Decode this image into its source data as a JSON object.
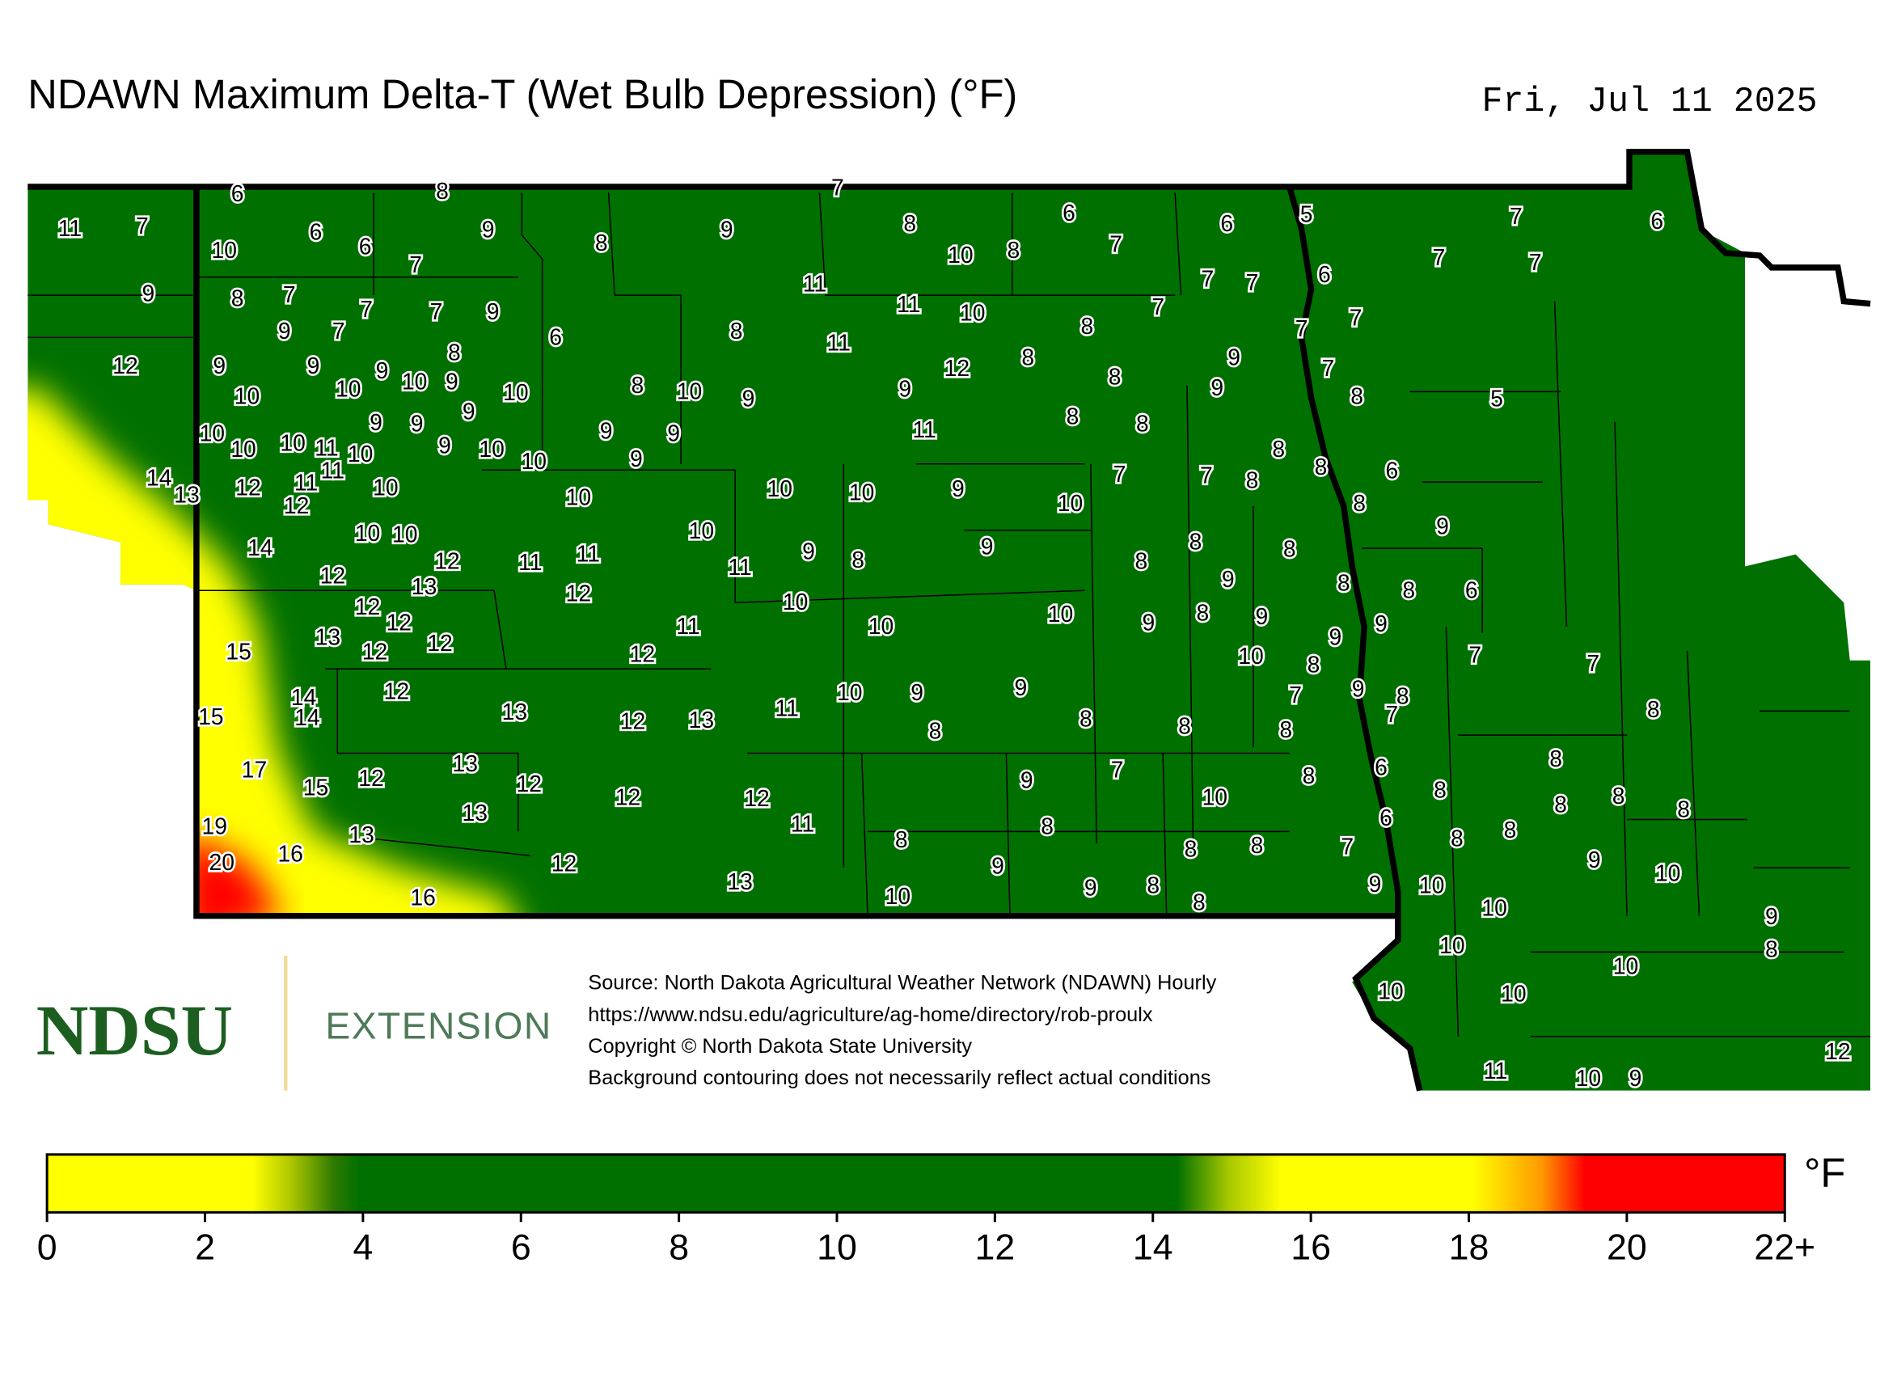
{
  "header": {
    "title": "NDAWN Maximum Delta-T (Wet Bulb Depression) (°F)",
    "date": "Fri, Jul 11 2025"
  },
  "stations": [
    6,
    8,
    7,
    11,
    7,
    9,
    9,
    8,
    6,
    6,
    5,
    7,
    6,
    10,
    6,
    6,
    7,
    8,
    10,
    8,
    7,
    7,
    7,
    9,
    8,
    7,
    11,
    7,
    7,
    6,
    7,
    7,
    9,
    11,
    10,
    7,
    7,
    9,
    7,
    6,
    8,
    8,
    7,
    11,
    12,
    8,
    8,
    9,
    9,
    9,
    9,
    12,
    7,
    10,
    10,
    10,
    9,
    10,
    8,
    10,
    9,
    9,
    8,
    9,
    8,
    5,
    9,
    9,
    9,
    8,
    8,
    10,
    9,
    9,
    11,
    10,
    10,
    11,
    10,
    9,
    10,
    10,
    9,
    8,
    11,
    8,
    6,
    14,
    13,
    12,
    11,
    10,
    10,
    10,
    9,
    7,
    7,
    8,
    12,
    10,
    10,
    8,
    10,
    10,
    10,
    9,
    8,
    9,
    14,
    12,
    11,
    11,
    11,
    9,
    8,
    8,
    8,
    12,
    13,
    12,
    9,
    8,
    8,
    6,
    12,
    12,
    10,
    11,
    10,
    10,
    9,
    8,
    9,
    9,
    13,
    12,
    9,
    15,
    12,
    12,
    10,
    8,
    7,
    7,
    12,
    10,
    9,
    9,
    7,
    9,
    8,
    14,
    15,
    14,
    13,
    12,
    13,
    11,
    7,
    8,
    8,
    8,
    8,
    8,
    13,
    6,
    17,
    12,
    12,
    9,
    7,
    8,
    15,
    12,
    12,
    10,
    8,
    8,
    8,
    8,
    8,
    13,
    6,
    19,
    11,
    8,
    8,
    8,
    13,
    8,
    8,
    8,
    7,
    20,
    16,
    12,
    9,
    9,
    10,
    13,
    8,
    9,
    9,
    10,
    16,
    10,
    8,
    10,
    9,
    10,
    8,
    10,
    10,
    10,
    12,
    11,
    10,
    9
  ],
  "source_lines": [
    "Source: North Dakota Agricultural Weather Network (NDAWN) Hourly",
    "https://www.ndsu.edu/agriculture/ag-home/directory/rob-proulx",
    "Copyright © North Dakota State University",
    "Background contouring does not necessarily reflect actual conditions"
  ],
  "logo": {
    "name": "NDSU",
    "unit": "EXTENSION"
  },
  "colorbar": {
    "unit": "°F",
    "range": [
      0,
      22
    ],
    "ticks": [
      0,
      2,
      4,
      6,
      8,
      10,
      12,
      14,
      16,
      18,
      20,
      {
        "value": 22,
        "label": "22+"
      }
    ]
  }
}
